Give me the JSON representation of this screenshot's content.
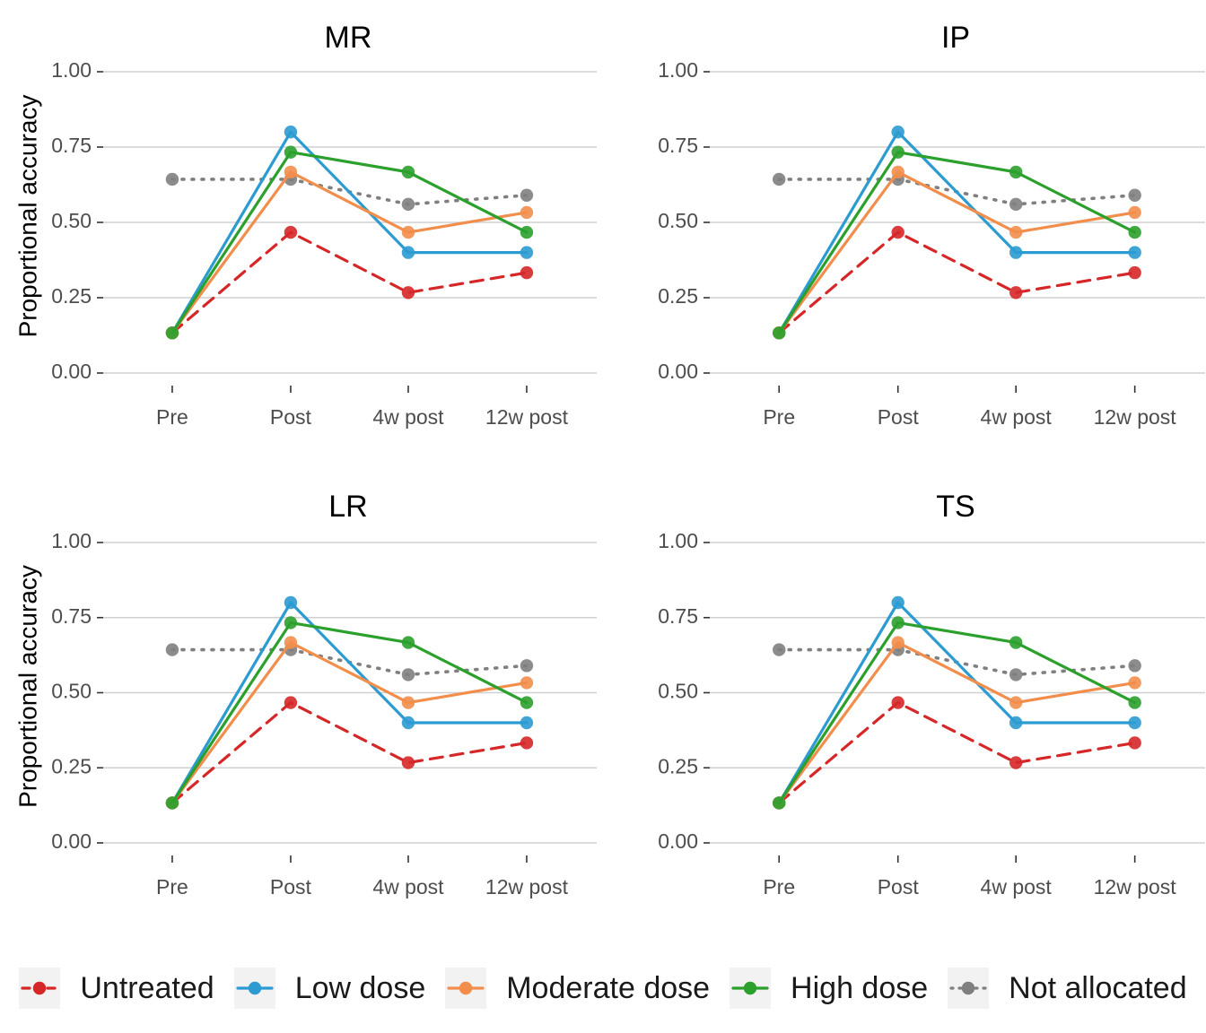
{
  "chart_data": [
    {
      "type": "line",
      "title": "MR",
      "ylabel": "Proportional accuracy",
      "categories": [
        "Pre",
        "Post",
        "4w post",
        "12w post"
      ],
      "ylim": [
        0,
        1
      ],
      "yticks": [
        "0.00",
        "0.25",
        "0.50",
        "0.75",
        "1.00"
      ],
      "series": [
        {
          "name": "Untreated",
          "values": [
            0.133,
            0.467,
            0.267,
            0.333
          ]
        },
        {
          "name": "Low dose",
          "values": [
            0.133,
            0.8,
            0.4,
            0.4
          ]
        },
        {
          "name": "Moderate dose",
          "values": [
            0.133,
            0.667,
            0.467,
            0.533
          ]
        },
        {
          "name": "High dose",
          "values": [
            0.133,
            0.733,
            0.667,
            0.467
          ]
        },
        {
          "name": "Not allocated",
          "values": [
            0.643,
            0.643,
            0.56,
            0.59
          ]
        }
      ]
    },
    {
      "type": "line",
      "title": "IP",
      "ylabel": "",
      "categories": [
        "Pre",
        "Post",
        "4w post",
        "12w post"
      ],
      "ylim": [
        0,
        1
      ],
      "yticks": [
        "0.00",
        "0.25",
        "0.50",
        "0.75",
        "1.00"
      ],
      "series": [
        {
          "name": "Untreated",
          "values": [
            0.133,
            0.467,
            0.267,
            0.333
          ]
        },
        {
          "name": "Low dose",
          "values": [
            0.133,
            0.8,
            0.4,
            0.4
          ]
        },
        {
          "name": "Moderate dose",
          "values": [
            0.133,
            0.667,
            0.467,
            0.533
          ]
        },
        {
          "name": "High dose",
          "values": [
            0.133,
            0.733,
            0.667,
            0.467
          ]
        },
        {
          "name": "Not allocated",
          "values": [
            0.643,
            0.643,
            0.56,
            0.59
          ]
        }
      ]
    },
    {
      "type": "line",
      "title": "LR",
      "ylabel": "Proportional accuracy",
      "categories": [
        "Pre",
        "Post",
        "4w post",
        "12w post"
      ],
      "ylim": [
        0,
        1
      ],
      "yticks": [
        "0.00",
        "0.25",
        "0.50",
        "0.75",
        "1.00"
      ],
      "series": [
        {
          "name": "Untreated",
          "values": [
            0.133,
            0.467,
            0.267,
            0.333
          ]
        },
        {
          "name": "Low dose",
          "values": [
            0.133,
            0.8,
            0.4,
            0.4
          ]
        },
        {
          "name": "Moderate dose",
          "values": [
            0.133,
            0.667,
            0.467,
            0.533
          ]
        },
        {
          "name": "High dose",
          "values": [
            0.133,
            0.733,
            0.667,
            0.467
          ]
        },
        {
          "name": "Not allocated",
          "values": [
            0.643,
            0.643,
            0.56,
            0.59
          ]
        }
      ]
    },
    {
      "type": "line",
      "title": "TS",
      "ylabel": "",
      "categories": [
        "Pre",
        "Post",
        "4w post",
        "12w post"
      ],
      "ylim": [
        0,
        1
      ],
      "yticks": [
        "0.00",
        "0.25",
        "0.50",
        "0.75",
        "1.00"
      ],
      "series": [
        {
          "name": "Untreated",
          "values": [
            0.133,
            0.467,
            0.267,
            0.333
          ]
        },
        {
          "name": "Low dose",
          "values": [
            0.133,
            0.8,
            0.4,
            0.4
          ]
        },
        {
          "name": "Moderate dose",
          "values": [
            0.133,
            0.667,
            0.467,
            0.533
          ]
        },
        {
          "name": "High dose",
          "values": [
            0.133,
            0.733,
            0.667,
            0.467
          ]
        },
        {
          "name": "Not allocated",
          "values": [
            0.643,
            0.643,
            0.56,
            0.59
          ]
        }
      ]
    }
  ],
  "legend": {
    "position": "bottom",
    "items": [
      {
        "label": "Untreated",
        "color": "#d62728",
        "line": "dashed"
      },
      {
        "label": "Low dose",
        "color": "#2b9bd1",
        "line": "solid"
      },
      {
        "label": "Moderate dose",
        "color": "#f28e4c",
        "line": "solid"
      },
      {
        "label": "High dose",
        "color": "#2ca02c",
        "line": "solid"
      },
      {
        "label": "Not allocated",
        "color": "#7f7f7f",
        "line": "dotted"
      }
    ]
  },
  "grid": "horizontal major only"
}
